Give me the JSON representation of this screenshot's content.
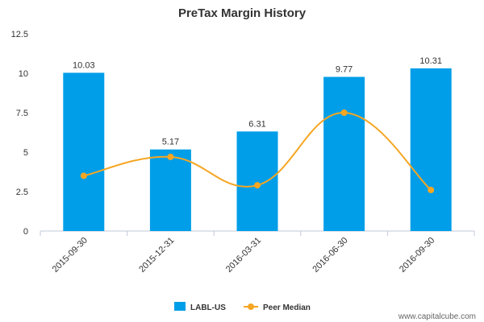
{
  "chart_data": {
    "type": "bar",
    "title": "PreTax Margin History",
    "categories": [
      "2015-09-30",
      "2015-12-31",
      "2016-03-31",
      "2016-06-30",
      "2016-09-30"
    ],
    "series": [
      {
        "name": "LABL-US",
        "type": "bar",
        "values": [
          10.03,
          5.17,
          6.31,
          9.77,
          10.31
        ],
        "color": "#009ee8"
      },
      {
        "name": "Peer Median",
        "type": "line",
        "values": [
          3.5,
          4.7,
          2.9,
          7.5,
          2.6
        ],
        "color": "#f5a623"
      }
    ],
    "data_labels": [
      "10.03",
      "5.17",
      "6.31",
      "9.77",
      "10.31"
    ],
    "yticks": [
      "0",
      "2.5",
      "5",
      "7.5",
      "10",
      "12.5"
    ],
    "ylim": [
      0,
      12.5
    ],
    "grid": false,
    "legend_position": "bottom-center"
  },
  "watermark": "www.capitalcube.com"
}
